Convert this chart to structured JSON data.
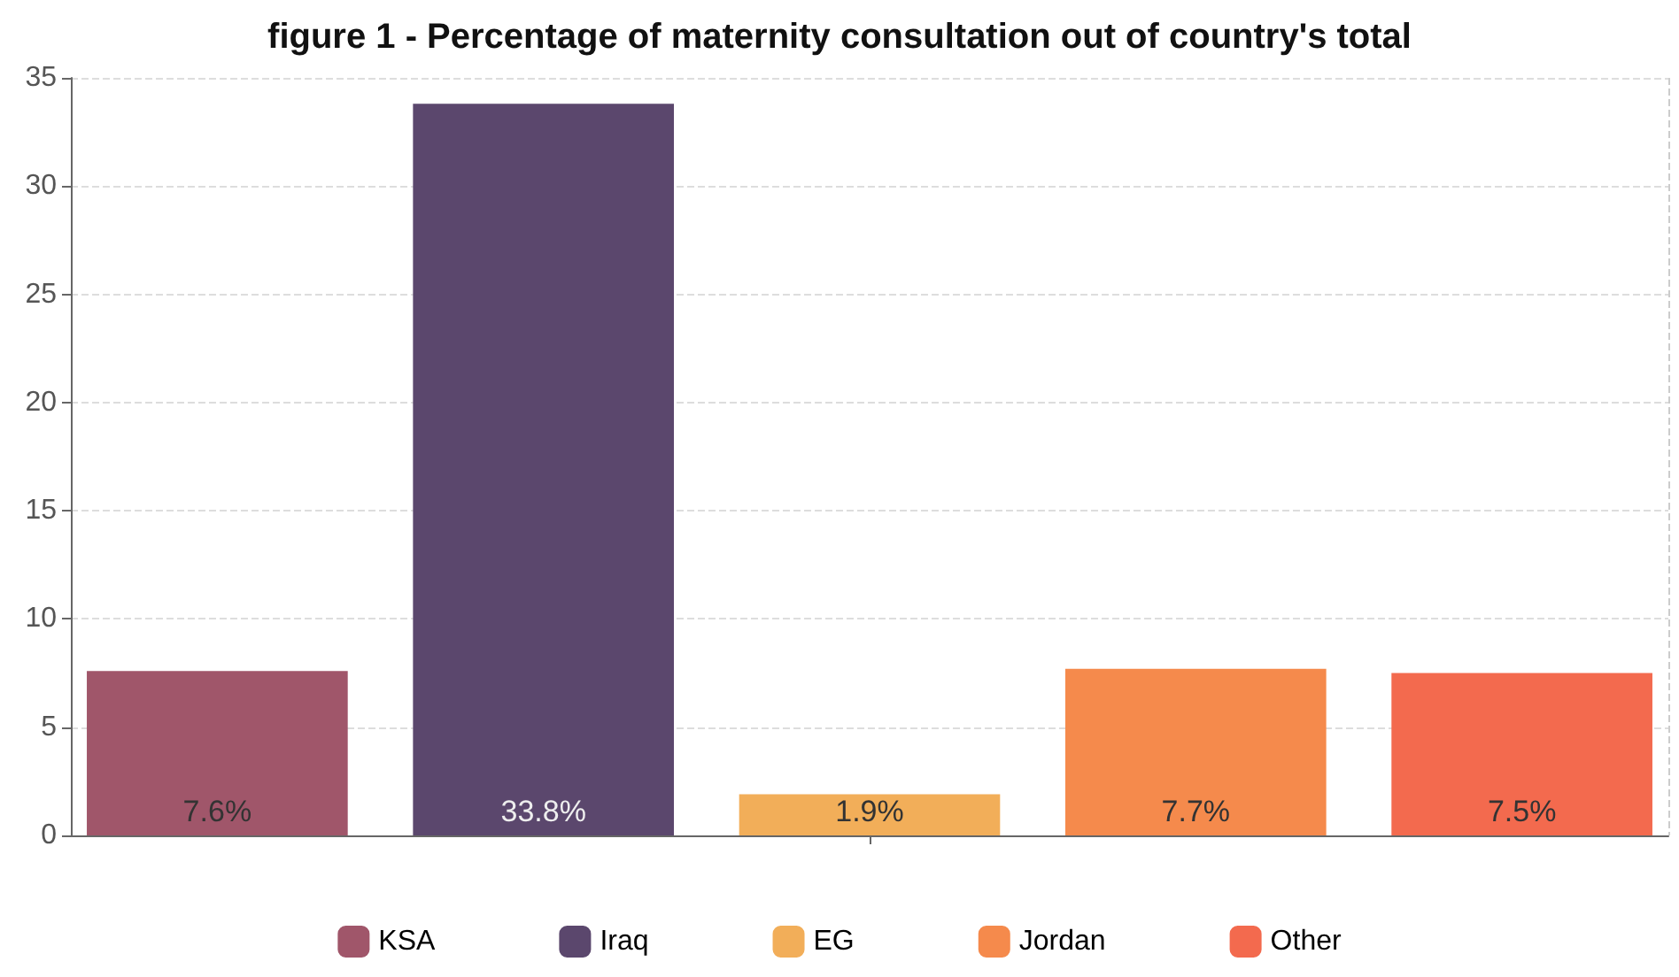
{
  "chart_data": {
    "type": "bar",
    "title": "figure 1 - Percentage of maternity consultation out of country's total",
    "categories": [
      null
    ],
    "series": [
      {
        "name": "KSA",
        "color": "#a0566a",
        "values": [
          7.6
        ],
        "value_labels": [
          "7.6%"
        ]
      },
      {
        "name": "Iraq",
        "color": "#5b476d",
        "values": [
          33.8
        ],
        "value_labels": [
          "33.8%"
        ]
      },
      {
        "name": "EG",
        "color": "#f2ae59",
        "values": [
          1.9
        ],
        "value_labels": [
          "1.9%"
        ]
      },
      {
        "name": "Jordan",
        "color": "#f58a4c",
        "values": [
          7.7
        ],
        "value_labels": [
          "7.7%"
        ]
      },
      {
        "name": "Other",
        "color": "#f36a4e",
        "values": [
          7.5
        ],
        "value_labels": [
          "7.5%"
        ]
      }
    ],
    "ylim": [
      0,
      35
    ],
    "yticks": [
      0,
      5,
      10,
      15,
      20,
      25,
      30,
      35
    ],
    "grid": true,
    "legend": "bottom"
  }
}
